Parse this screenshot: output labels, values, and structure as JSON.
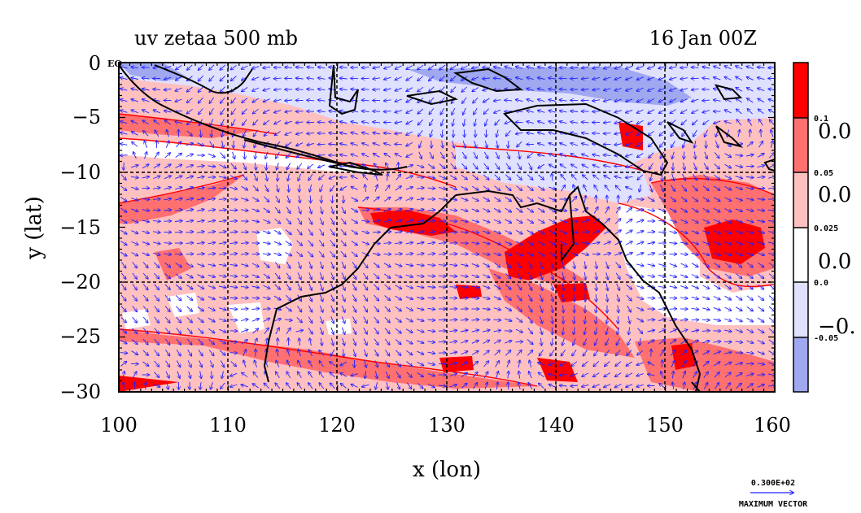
{
  "title_left": "uv zetaa 500 mb",
  "title_right": "16 Jan 00Z",
  "xlabel": "x (lon)",
  "ylabel": "y (lat)",
  "eq_label": "EQ",
  "x_ticks": [
    "100",
    "110",
    "120",
    "130",
    "140",
    "150",
    "160"
  ],
  "y_ticks": [
    "0",
    "−5",
    "−10",
    "−15",
    "−20",
    "−25",
    "−30"
  ],
  "colorbar": {
    "colors": [
      "#ff0000",
      "#ff7070",
      "#ffc0c0",
      "#ffffff",
      "#e0e0ff",
      "#a0a8f0"
    ],
    "small_labels": [
      "0.1",
      "0.05",
      "0.025",
      "0.0",
      "-0.05"
    ],
    "big_labels": [
      "0.0",
      "0.0",
      "0.0",
      "−0."
    ]
  },
  "vector_legend": {
    "value": "0.300E+02",
    "label": "MAXIMUM VECTOR"
  },
  "colors": {
    "vector": "#2020ff",
    "coast": "#000000",
    "contour": "#ff0000",
    "grid": "#000000"
  }
}
